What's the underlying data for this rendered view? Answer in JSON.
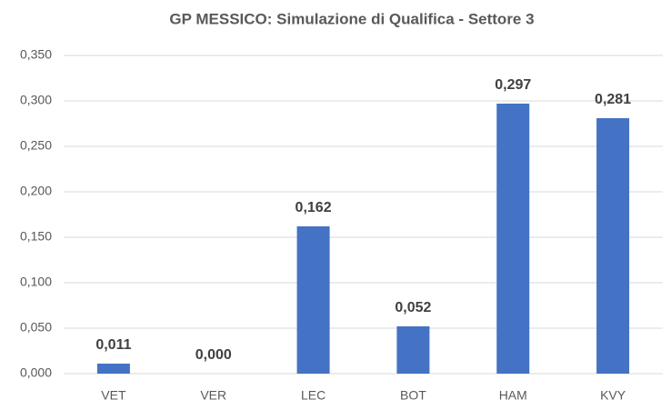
{
  "chart_data": {
    "type": "bar",
    "title": "GP MESSICO: Simulazione di Qualifica - Settore 3",
    "categories": [
      "VET",
      "VER",
      "LEC",
      "BOT",
      "HAM",
      "KVY"
    ],
    "values": [
      0.011,
      0.0,
      0.162,
      0.052,
      0.297,
      0.281
    ],
    "value_labels": [
      "0,011",
      "0,000",
      "0,162",
      "0,052",
      "0,297",
      "0,281"
    ],
    "color": "#4472c4",
    "ylim": [
      0,
      0.35
    ],
    "yticks": [
      {
        "value": 0,
        "label": "0,000"
      },
      {
        "value": 0.05,
        "label": "0,050"
      },
      {
        "value": 0.1,
        "label": "0,100"
      },
      {
        "value": 0.15,
        "label": "0,150"
      },
      {
        "value": 0.2,
        "label": "0,200"
      },
      {
        "value": 0.25,
        "label": "0,250"
      },
      {
        "value": 0.3,
        "label": "0,300"
      },
      {
        "value": 0.35,
        "label": "0,350"
      }
    ],
    "grid": true
  }
}
